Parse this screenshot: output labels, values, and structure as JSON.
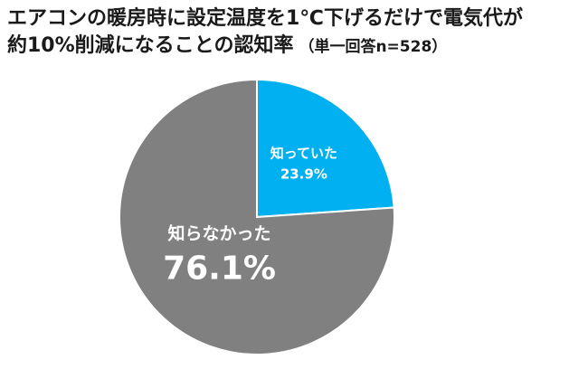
{
  "title": {
    "line1": "エアコンの暖房時に設定温度を1℃下げるだけで電気代が",
    "line2": "約10%削減になることの認知率",
    "note": "（単一回答n=528）"
  },
  "colors": {
    "knew": "#00b0f0",
    "did_not_know": "#808080",
    "label": "#ffffff"
  },
  "chart_data": {
    "type": "pie",
    "title": "エアコンの暖房時に設定温度を1℃下げるだけで電気代が約10%削減になることの認知率",
    "subtitle": "（単一回答n=528）",
    "n": 528,
    "start_angle_deg": 0,
    "direction": "clockwise",
    "slices": [
      {
        "label": "知っていた",
        "value": 23.9,
        "value_label": "23.9%",
        "color": "#00b0f0"
      },
      {
        "label": "知らなかった",
        "value": 76.1,
        "value_label": "76.1%",
        "color": "#808080"
      }
    ]
  }
}
